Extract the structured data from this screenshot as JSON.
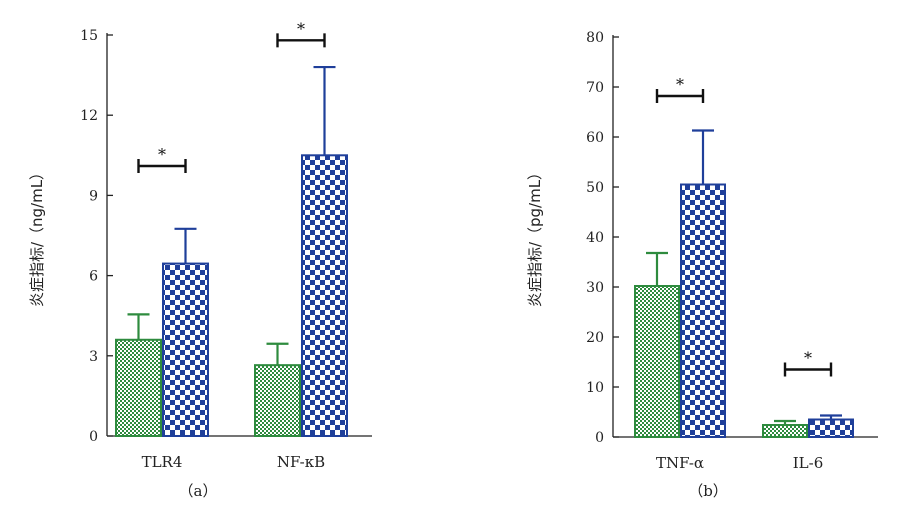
{
  "colors": {
    "green": "#2e8b3e",
    "blue": "#1f3f9a",
    "axis": "#222222"
  },
  "chart_data": [
    {
      "type": "bar",
      "panel_label": "（a）",
      "ylabel": "炎症指标/（ng/mL）",
      "categories": [
        "TLR4",
        "NF-κB"
      ],
      "ylim": [
        0,
        15
      ],
      "yticks": [
        "0",
        "3",
        "6",
        "9",
        "12",
        "15"
      ],
      "series": [
        {
          "values": [
            3.6,
            2.65
          ],
          "errors": [
            0.95,
            0.8
          ]
        },
        {
          "values": [
            6.45,
            10.5
          ],
          "errors": [
            1.3,
            3.3
          ]
        }
      ],
      "significance": [
        {
          "category": "TLR4",
          "marker": "*",
          "value": 10.1
        },
        {
          "category": "NF-κB",
          "marker": "*",
          "value": 14.8
        }
      ]
    },
    {
      "type": "bar",
      "panel_label": "（b）",
      "ylabel": "炎症指标/（pg/mL）",
      "categories": [
        "TNF-α",
        "IL-6"
      ],
      "ylim": [
        0,
        80
      ],
      "yticks": [
        "0",
        "10",
        "20",
        "30",
        "40",
        "50",
        "60",
        "70",
        "80"
      ],
      "series": [
        {
          "values": [
            30.2,
            2.4
          ],
          "errors": [
            6.6,
            0.8
          ]
        },
        {
          "values": [
            50.5,
            3.5
          ],
          "errors": [
            10.8,
            0.8
          ]
        }
      ],
      "significance": [
        {
          "category": "TNF-α",
          "marker": "*",
          "value": 68.2
        },
        {
          "category": "IL-6",
          "marker": "*",
          "value": 13.5
        }
      ]
    }
  ]
}
